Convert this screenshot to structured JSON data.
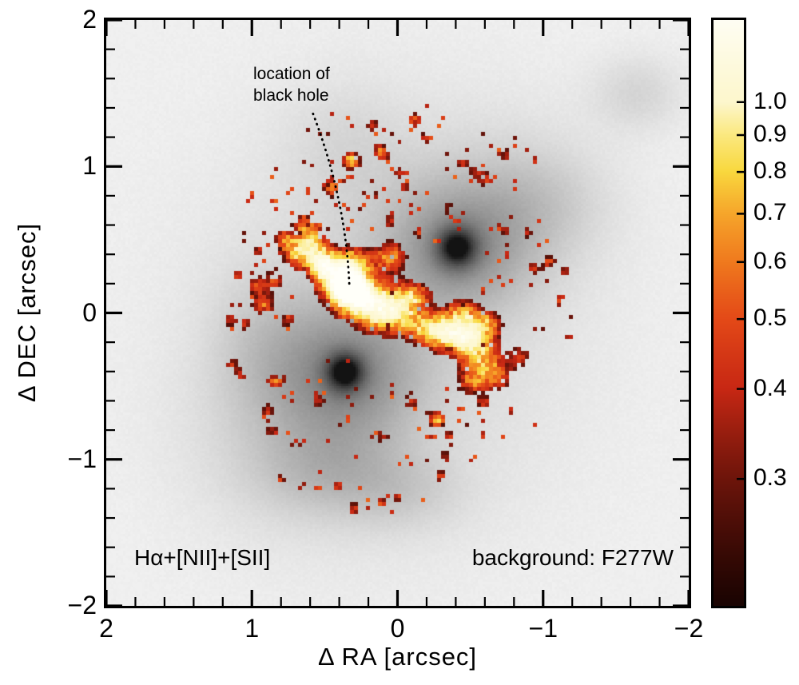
{
  "figure": {
    "xlabel": "Δ RA [arcsec]",
    "ylabel": "Δ DEC [arcsec]",
    "emission_label": "Hα+[NII]+[SII]",
    "background_label": "background: F277W",
    "annotation": {
      "line1": "location of",
      "line2": "black hole"
    }
  },
  "chart_data": {
    "type": "heatmap",
    "scene": "Emission-line map (Hα+[NII]+[SII], 'hot' colormap, pixelated clumps) overlaid on a grayscale F277W image of a double-nucleus galaxy; dotted line marks the black hole location at the emission peak.",
    "xlabel": "Δ RA [arcsec]",
    "ylabel": "Δ DEC [arcsec]",
    "x_range": [
      2,
      -2
    ],
    "y_range": [
      -2,
      2
    ],
    "x_ticks": {
      "values": [
        2,
        1,
        0,
        -1,
        -2
      ],
      "labels": [
        "2",
        "1",
        "0",
        "−1",
        "−2"
      ]
    },
    "y_ticks": {
      "values": [
        2,
        1,
        0,
        -1,
        -2
      ],
      "labels": [
        "2",
        "1",
        "0",
        "−1",
        "−2"
      ]
    },
    "minor_tick_step": 0.2,
    "emission_label": "Hα+[NII]+[SII]",
    "background_label": "background: F277W",
    "annotation": {
      "text": "location of black hole",
      "line_start": {
        "x": 0.58,
        "y": 1.36
      },
      "line_control": {
        "x": 0.35,
        "y": 0.76
      },
      "target": {
        "x": 0.33,
        "y": 0.17
      }
    },
    "colorbar": {
      "scale": "log",
      "vmin": 0.2,
      "vmax": 1.3,
      "tick_values": [
        1.0,
        0.9,
        0.8,
        0.7,
        0.6,
        0.5,
        0.4,
        0.3
      ],
      "tick_labels": [
        "1.0",
        "0.9",
        "0.8",
        "0.7",
        "0.6",
        "0.5",
        "0.4",
        "0.3"
      ],
      "colormap": "hot",
      "colormap_stops": [
        [
          0.2,
          26,
          4,
          2
        ],
        [
          0.3,
          110,
          21,
          11
        ],
        [
          0.4,
          200,
          40,
          20
        ],
        [
          0.5,
          228,
          74,
          24
        ],
        [
          0.6,
          240,
          122,
          30
        ],
        [
          0.7,
          246,
          166,
          43
        ],
        [
          0.8,
          249,
          216,
          62
        ],
        [
          0.9,
          251,
          233,
          128
        ],
        [
          1.0,
          253,
          247,
          205
        ],
        [
          1.35,
          255,
          255,
          250
        ]
      ]
    },
    "background_image": {
      "filter": "F277W",
      "base_gray": 240,
      "nuclei": [
        {
          "x": -0.41,
          "y": 0.44
        },
        {
          "x": 0.36,
          "y": -0.41
        }
      ],
      "sources": [
        [
          0.05,
          -0.05,
          0.85,
          0.95,
          0.12
        ],
        [
          -0.41,
          0.44,
          0.34,
          0.31,
          0.3
        ],
        [
          -0.41,
          0.44,
          0.1,
          0.1,
          0.5
        ],
        [
          -0.41,
          0.44,
          0.05,
          0.05,
          0.22
        ],
        [
          0.36,
          -0.41,
          0.34,
          0.33,
          0.32
        ],
        [
          0.36,
          -0.41,
          0.09,
          0.09,
          0.55
        ],
        [
          0.36,
          -0.41,
          0.045,
          0.045,
          0.22
        ],
        [
          -0.75,
          0.75,
          0.45,
          0.4,
          0.09
        ],
        [
          0.7,
          -0.85,
          0.5,
          0.45,
          0.1
        ],
        [
          -1.65,
          1.5,
          0.22,
          0.18,
          0.11
        ],
        [
          0.45,
          -1.1,
          0.35,
          0.2,
          0.12
        ],
        [
          -0.05,
          -1.25,
          0.3,
          0.18,
          0.09
        ],
        [
          0.95,
          -0.2,
          0.25,
          0.35,
          0.09
        ],
        [
          -1.0,
          0.75,
          0.3,
          0.25,
          0.08
        ],
        [
          0.35,
          1.15,
          0.3,
          0.3,
          0.07
        ]
      ]
    },
    "emission_clumps": [
      [
        0.33,
        0.17,
        0.1,
        0.085,
        1.5
      ],
      [
        0.2,
        0.06,
        0.16,
        0.11,
        0.85
      ],
      [
        0.02,
        -0.02,
        0.14,
        0.1,
        0.7
      ],
      [
        0.45,
        0.28,
        0.11,
        0.09,
        0.75
      ],
      [
        0.3,
        0.35,
        0.08,
        0.07,
        0.6
      ],
      [
        0.05,
        0.38,
        0.09,
        0.08,
        0.62
      ],
      [
        -0.12,
        0.12,
        0.09,
        0.07,
        0.55
      ],
      [
        -0.22,
        -0.12,
        0.1,
        0.08,
        0.6
      ],
      [
        -0.35,
        -0.15,
        0.1,
        0.09,
        0.65
      ],
      [
        -0.5,
        -0.18,
        0.1,
        0.09,
        0.8
      ],
      [
        -0.45,
        0.0,
        0.08,
        0.07,
        0.55
      ],
      [
        -0.62,
        -0.08,
        0.08,
        0.07,
        0.55
      ],
      [
        -0.6,
        -0.33,
        0.1,
        0.09,
        0.6
      ],
      [
        -0.52,
        -0.48,
        0.08,
        0.07,
        0.5
      ],
      [
        -0.7,
        -0.45,
        0.07,
        0.06,
        0.45
      ],
      [
        -0.85,
        -0.3,
        0.06,
        0.06,
        0.42
      ],
      [
        0.58,
        0.45,
        0.09,
        0.08,
        0.68
      ],
      [
        0.7,
        0.4,
        0.07,
        0.07,
        0.55
      ],
      [
        0.63,
        0.58,
        0.06,
        0.06,
        0.5
      ],
      [
        0.78,
        0.5,
        0.05,
        0.05,
        0.45
      ],
      [
        0.52,
        0.33,
        0.06,
        0.06,
        0.55
      ],
      [
        0.92,
        0.05,
        0.06,
        0.05,
        0.55
      ],
      [
        0.97,
        0.18,
        0.05,
        0.05,
        0.42
      ],
      [
        0.85,
        0.22,
        0.05,
        0.06,
        0.45
      ],
      [
        0.75,
        -0.05,
        0.05,
        0.05,
        0.42
      ],
      [
        1.05,
        -0.08,
        0.04,
        0.04,
        0.38
      ],
      [
        0.3,
        1.02,
        0.05,
        0.05,
        0.45
      ],
      [
        0.13,
        1.12,
        0.04,
        0.04,
        0.4
      ],
      [
        -0.12,
        1.32,
        0.045,
        0.045,
        0.5
      ],
      [
        -0.2,
        1.2,
        0.04,
        0.04,
        0.38
      ],
      [
        0.45,
        0.83,
        0.04,
        0.04,
        0.4
      ],
      [
        -0.05,
        0.85,
        0.04,
        0.04,
        0.36
      ],
      [
        -0.55,
        0.95,
        0.045,
        0.045,
        0.4
      ],
      [
        -0.35,
        0.7,
        0.04,
        0.04,
        0.36
      ],
      [
        -0.75,
        0.55,
        0.04,
        0.04,
        0.38
      ],
      [
        -0.95,
        0.3,
        0.05,
        0.04,
        0.4
      ],
      [
        -0.1,
        -0.6,
        0.05,
        0.05,
        0.45
      ],
      [
        -0.28,
        -0.72,
        0.05,
        0.04,
        0.4
      ],
      [
        0.1,
        -0.85,
        0.04,
        0.04,
        0.38
      ]
    ],
    "emission_dots": [
      [
        0.8,
        -0.46
      ],
      [
        0.89,
        -0.67
      ],
      [
        0.86,
        -0.81
      ],
      [
        0.7,
        -0.89
      ],
      [
        0.8,
        -1.15
      ],
      [
        0.66,
        -1.18
      ],
      [
        0.41,
        -1.19
      ],
      [
        0.3,
        -1.35
      ],
      [
        0.1,
        -1.3
      ],
      [
        -0.01,
        -1.26
      ],
      [
        -0.3,
        -1.12
      ],
      [
        -0.33,
        -0.99
      ],
      [
        -0.28,
        -0.74
      ],
      [
        -0.36,
        -0.85
      ],
      [
        1.14,
        -0.35
      ],
      [
        1.08,
        -0.43
      ],
      [
        0.86,
        -0.48
      ],
      [
        0.17,
        1.28
      ],
      [
        0.33,
        1.05
      ],
      [
        0.1,
        1.07
      ],
      [
        -0.02,
        0.95
      ],
      [
        0.48,
        0.88
      ],
      [
        -0.45,
        1.02
      ],
      [
        -0.62,
        0.9
      ],
      [
        -0.75,
        1.08
      ],
      [
        -0.9,
        0.55
      ],
      [
        -1.05,
        0.35
      ],
      [
        -1.15,
        0.28
      ],
      [
        -1.11,
        0.08
      ],
      [
        0.95,
        0.42
      ],
      [
        1.1,
        0.25
      ],
      [
        1.15,
        -0.05
      ],
      [
        -0.6,
        -0.62
      ],
      [
        0.55,
        -0.6
      ],
      [
        0.05,
        0.62
      ],
      [
        -0.15,
        0.55
      ]
    ],
    "speckle_regions": [
      [
        0.5,
        0.95,
        0.45,
        0.035
      ],
      [
        -0.25,
        0.95,
        0.5,
        0.035
      ],
      [
        0.8,
        0.55,
        0.35,
        0.045
      ],
      [
        -0.85,
        0.35,
        0.35,
        0.035
      ],
      [
        1.0,
        0.0,
        0.3,
        0.04
      ],
      [
        0.6,
        -0.5,
        0.4,
        0.03
      ],
      [
        0.15,
        -0.95,
        0.5,
        0.03
      ],
      [
        -0.6,
        -0.75,
        0.35,
        0.035
      ],
      [
        -0.8,
        1.05,
        0.22,
        0.04
      ],
      [
        -1.05,
        -0.05,
        0.25,
        0.035
      ],
      [
        0.35,
        0.7,
        0.3,
        0.05
      ]
    ]
  }
}
